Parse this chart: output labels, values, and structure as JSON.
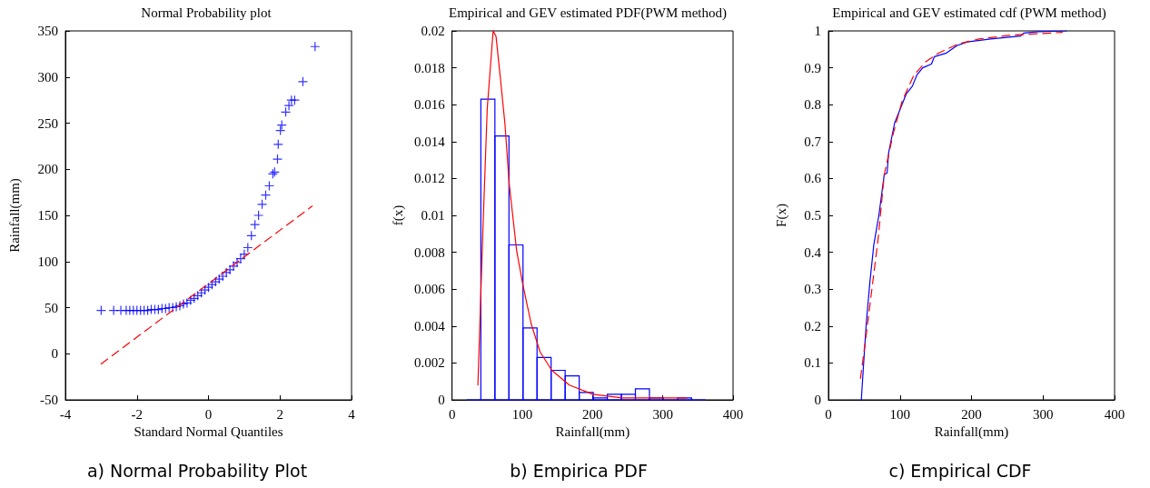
{
  "chart_data": [
    {
      "type": "scatter",
      "title": "Normal Probability plot",
      "xlabel": "Standard Normal Quantiles",
      "ylabel": "Rainfall(mm)",
      "annotations": [
        "a) Normal Probability Plot"
      ],
      "marker": "cross",
      "xlim": [
        -4,
        4
      ],
      "xticks": [
        -4,
        -2,
        0,
        2,
        4
      ],
      "ylim": [
        -50,
        350
      ],
      "yticks": [
        -50,
        0,
        50,
        100,
        150,
        200,
        250,
        300,
        350
      ],
      "series": [
        {
          "color": "#0000ff",
          "x": [
            -3.0,
            -2.65,
            -2.45,
            -2.3,
            -2.2,
            -2.1,
            -2.0,
            -1.9,
            -1.8,
            -1.7,
            -1.6,
            -1.5,
            -1.4,
            -1.3,
            -1.2,
            -1.1,
            -1.0,
            -0.9,
            -0.8,
            -0.7,
            -0.6,
            -0.5,
            -0.4,
            -0.3,
            -0.2,
            -0.1,
            0,
            0.1,
            0.2,
            0.3,
            0.4,
            0.5,
            0.6,
            0.7,
            0.8,
            0.9,
            1.0,
            1.1,
            1.2,
            1.3,
            1.4,
            1.5,
            1.6,
            1.7,
            1.8,
            1.85,
            1.93,
            1.95,
            2.01,
            2.05,
            2.16,
            2.25,
            2.32,
            2.41,
            2.64,
            2.98
          ],
          "values": [
            47,
            47,
            47,
            47,
            47,
            47,
            47,
            47,
            47,
            47,
            48,
            48,
            48,
            49,
            49,
            50,
            50,
            51,
            52,
            54,
            55,
            58,
            60,
            63,
            66,
            69,
            72,
            75,
            78,
            81,
            84,
            88,
            91,
            95,
            99,
            103,
            108,
            115,
            128,
            140,
            150,
            162,
            172,
            182,
            195,
            197,
            211,
            227,
            242,
            248,
            262,
            269,
            275,
            275,
            295,
            333
          ]
        },
        {
          "type": "line",
          "color": "#ff0000",
          "marker": "none",
          "line_style": "dashed",
          "x": [
            -3.0,
            2.9
          ],
          "values": [
            -11,
            160
          ]
        }
      ]
    },
    {
      "type": "histogram",
      "title": "Empirical and GEV estimated PDF(PWM method)",
      "xlabel": "Rainfall(mm)",
      "ylabel": "f(x)",
      "annotations": [
        "b) Empirica PDF"
      ],
      "xlim": [
        0,
        400
      ],
      "xticks": [
        0,
        100,
        200,
        300,
        400
      ],
      "ylim": [
        0,
        0.02
      ],
      "yticks": [
        0,
        0.002,
        0.004,
        0.006,
        0.008,
        0.01,
        0.012,
        0.014,
        0.016,
        0.018,
        0.02
      ],
      "series": [
        {
          "color": "#0000ff",
          "bins": [
            21,
            41,
            61,
            81,
            101,
            121,
            141,
            161,
            181,
            201,
            221,
            241,
            261,
            281,
            301,
            321,
            341,
            361
          ],
          "values": [
            0,
            0.0163,
            0.0143,
            0.0084,
            0.0039,
            0.0023,
            0.0016,
            0.0013,
            0.0004,
            0.0001,
            0.0003,
            0.0003,
            0.0006,
            0.0001,
            0,
            0.0001,
            0
          ]
        },
        {
          "type": "line",
          "color": "#ff0000",
          "marker": "none",
          "line_style": "solid",
          "x": [
            36.8,
            43.9,
            50.1,
            58.5,
            62.6,
            68.9,
            75.2,
            81.4,
            91.9,
            101,
            112.8,
            125.3,
            142,
            167,
            200.5,
            242,
            284,
            334
          ],
          "values": [
            0.0008,
            0.0092,
            0.0158,
            0.02,
            0.0197,
            0.0174,
            0.015,
            0.0117,
            0.0081,
            0.0062,
            0.0041,
            0.0026,
            0.0016,
            0.0008,
            0.0003,
            0.0001,
            0.0001,
            0.0001
          ]
        }
      ]
    },
    {
      "type": "line",
      "title": "Empirical and GEV estimated cdf (PWM method)",
      "xlabel": "Rainfall(mm)",
      "ylabel": "F(x)",
      "annotations": [
        "c) Empirical CDF"
      ],
      "xlim": [
        0,
        400
      ],
      "xticks": [
        0,
        100,
        200,
        300,
        400
      ],
      "ylim": [
        0,
        1
      ],
      "yticks": [
        0,
        0.1,
        0.2,
        0.3,
        0.4,
        0.5,
        0.6,
        0.7,
        0.8,
        0.9,
        1
      ],
      "series": [
        {
          "color": "#0000ff",
          "marker": "none",
          "line_style": "solid",
          "x": [
            46,
            48.9,
            53,
            58,
            63.4,
            70.5,
            78,
            82,
            84.2,
            92.5,
            100.7,
            109,
            117.3,
            123.5,
            131.8,
            144,
            148,
            165,
            179.5,
            194,
            227,
            268.7,
            273,
            293.5,
            333
          ],
          "values": [
            0,
            0.09,
            0.21,
            0.32,
            0.42,
            0.5,
            0.61,
            0.615,
            0.67,
            0.75,
            0.79,
            0.83,
            0.85,
            0.88,
            0.9,
            0.91,
            0.93,
            0.94,
            0.96,
            0.97,
            0.978,
            0.986,
            0.994,
            0.998,
            1
          ]
        },
        {
          "color": "#ff0000",
          "marker": "none",
          "line_style": "dashed",
          "x": [
            44.8,
            53,
            61.4,
            69.7,
            78,
            90.4,
            103,
            119.4,
            136,
            152,
            181.6,
            210.6,
            252,
            326.7
          ],
          "values": [
            0.058,
            0.18,
            0.31,
            0.44,
            0.61,
            0.72,
            0.81,
            0.88,
            0.916,
            0.938,
            0.965,
            0.978,
            0.988,
            0.996
          ]
        }
      ]
    }
  ]
}
